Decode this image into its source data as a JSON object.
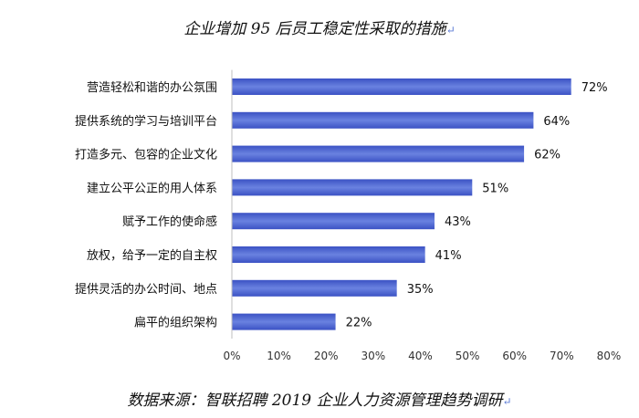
{
  "chart_data": {
    "type": "bar",
    "orientation": "horizontal",
    "title": "企业增加 95 后员工稳定性采取的措施",
    "source": "数据来源：智联招聘 2019 企业人力资源管理趋势调研",
    "categories": [
      "营造轻松和谐的办公氛围",
      "提供系统的学习与培训平台",
      "打造多元、包容的企业文化",
      "建立公平公正的用人体系",
      "赋予工作的使命感",
      "放权，给予一定的自主权",
      "提供灵活的办公时间、地点",
      "扁平的组织架构"
    ],
    "values": [
      72,
      64,
      62,
      51,
      43,
      41,
      35,
      22
    ],
    "value_labels": [
      "72%",
      "64%",
      "62%",
      "51%",
      "43%",
      "41%",
      "35%",
      "22%"
    ],
    "xlim": [
      0,
      80
    ],
    "x_ticks": [
      "0%",
      "10%",
      "20%",
      "30%",
      "40%",
      "50%",
      "60%",
      "70%",
      "80%"
    ],
    "x_tick_values": [
      0,
      10,
      20,
      30,
      40,
      50,
      60,
      70,
      80
    ],
    "grid": false,
    "bar_color": "#3b52c4",
    "bar_color_light": "#6a82e0"
  }
}
